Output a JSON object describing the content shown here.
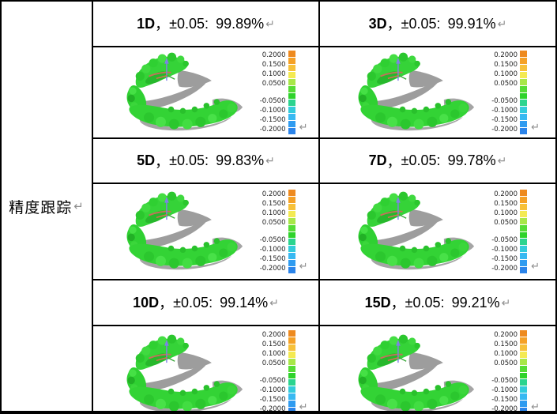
{
  "row_label": {
    "text": "精度跟踪"
  },
  "marks": {
    "return": "↵"
  },
  "cells": [
    {
      "day": "1D",
      "comma": "，",
      "tolerance": "±0.05:",
      "value": "99.89%"
    },
    {
      "day": "3D",
      "comma": "，",
      "tolerance": "±0.05:",
      "value": "99.91%"
    },
    {
      "day": "5D",
      "comma": "，",
      "tolerance": "±0.05:",
      "value": "99.83%"
    },
    {
      "day": "7D",
      "comma": "，",
      "tolerance": "±0.05:",
      "value": "99.78%"
    },
    {
      "day": "10D",
      "comma": "，",
      "tolerance": "±0.05:",
      "value": "99.14%"
    },
    {
      "day": "15D",
      "comma": "，",
      "tolerance": "±0.05:",
      "value": "99.21%"
    }
  ],
  "legend": {
    "labels": [
      "0.2000",
      "0.1500",
      "0.1000",
      "0.0500",
      "-0.0500",
      "-0.1000",
      "-0.1500",
      "-0.2000"
    ],
    "bar_colors": [
      "#ee8a1f",
      "#f5a127",
      "#f7c13a",
      "#f4ea52",
      "#a8e748",
      "#55dd35",
      "#2ed32b",
      "#2bd48f",
      "#33ccdb",
      "#38b9f2",
      "#2f9bf0",
      "#2b84ea"
    ]
  },
  "colors": {
    "model_green": "#33d335",
    "shadow_gray": "#9d9d9d",
    "border_black": "#000000",
    "paragraph_mark_gray": "#8f8f8f"
  }
}
